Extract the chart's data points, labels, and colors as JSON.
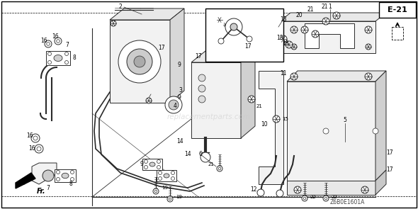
{
  "page_label": "E-21",
  "watermark": "replacementparts.com",
  "diagram_code": "Z6B0E1601A",
  "bg": "#ffffff",
  "lc": "#2a2a2a",
  "gray_fill": "#e8e8e8",
  "light_fill": "#f2f2f2"
}
